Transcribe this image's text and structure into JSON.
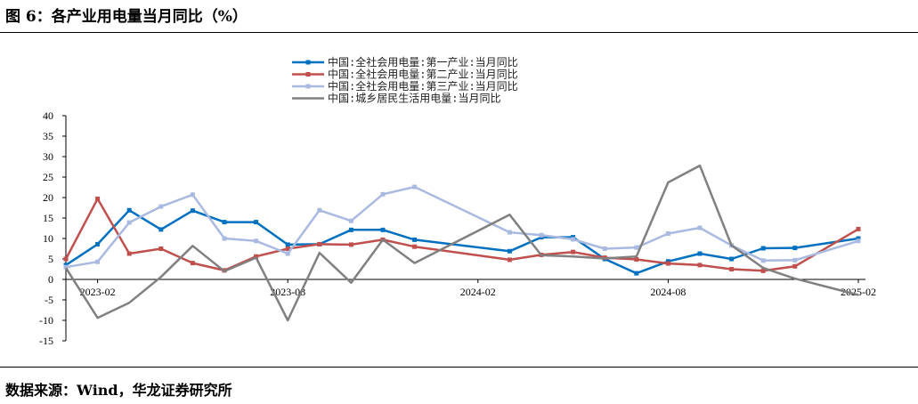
{
  "header": {
    "title": "图 6：各产业用电量当月同比（%）"
  },
  "footer": {
    "source": "数据来源：Wind，华龙证券研究所"
  },
  "chart_data": {
    "type": "line",
    "title": "各产业用电量当月同比（%）",
    "xlabel": "",
    "ylabel": "",
    "ylim": [
      -15,
      40
    ],
    "yticks": [
      -15,
      -10,
      -5,
      0,
      5,
      10,
      15,
      20,
      25,
      30,
      35,
      40
    ],
    "x": [
      "2023-01",
      "2023-02",
      "2023-03",
      "2023-04",
      "2023-05",
      "2023-06",
      "2023-07",
      "2023-08",
      "2023-09",
      "2023-10",
      "2023-11",
      "2023-12",
      "2024-01",
      "2024-02",
      "2024-03",
      "2024-04",
      "2024-05",
      "2024-06",
      "2024-07",
      "2024-08",
      "2024-09",
      "2024-10",
      "2024-11",
      "2024-12",
      "2025-01",
      "2025-02"
    ],
    "xtick_labels": [
      "2023-02",
      "2023-08",
      "2024-02",
      "2024-08",
      "2025-02"
    ],
    "legend_position": "top-center",
    "series": [
      {
        "name": "中国:全社会用电量:第一产业:当月同比",
        "color": "#0070c0",
        "marker": "square-filled",
        "values": [
          3.5,
          8.6,
          16.9,
          12.2,
          16.8,
          14.0,
          14.0,
          8.5,
          8.6,
          12.1,
          12.1,
          9.7,
          null,
          null,
          6.9,
          10.3,
          10.3,
          5.0,
          1.5,
          4.4,
          6.3,
          5.0,
          7.6,
          7.7,
          null,
          10.0
        ]
      },
      {
        "name": "中国:全社会用电量:第二产业:当月同比",
        "color": "#c0504d",
        "marker": "square-filled",
        "values": [
          5.0,
          19.7,
          6.3,
          7.5,
          4.0,
          2.2,
          5.6,
          7.5,
          8.6,
          8.5,
          9.7,
          8.0,
          null,
          null,
          4.8,
          6.0,
          6.7,
          5.3,
          4.9,
          3.9,
          3.5,
          2.5,
          2.1,
          3.2,
          null,
          12.3
        ]
      },
      {
        "name": "中国:全社会用电量:第三产业:当月同比",
        "color": "#a9b9e0",
        "marker": "square-filled",
        "values": [
          3.0,
          4.3,
          13.9,
          17.8,
          20.7,
          10.0,
          9.4,
          6.3,
          16.9,
          14.3,
          20.8,
          22.6,
          null,
          null,
          11.5,
          10.8,
          9.8,
          7.5,
          7.8,
          11.2,
          12.6,
          8.3,
          4.6,
          4.7,
          null,
          9.4
        ]
      },
      {
        "name": "中国:城乡居民生活用电量:当月同比",
        "color": "#808080",
        "marker": "none",
        "values": [
          2.8,
          -9.4,
          -5.7,
          0.6,
          8.2,
          2.0,
          5.3,
          -10.0,
          6.5,
          -0.8,
          9.7,
          4.0,
          null,
          null,
          15.8,
          5.9,
          5.6,
          5.1,
          5.6,
          23.7,
          27.8,
          8.3,
          2.8,
          0.2,
          null,
          -3.8
        ]
      }
    ]
  }
}
